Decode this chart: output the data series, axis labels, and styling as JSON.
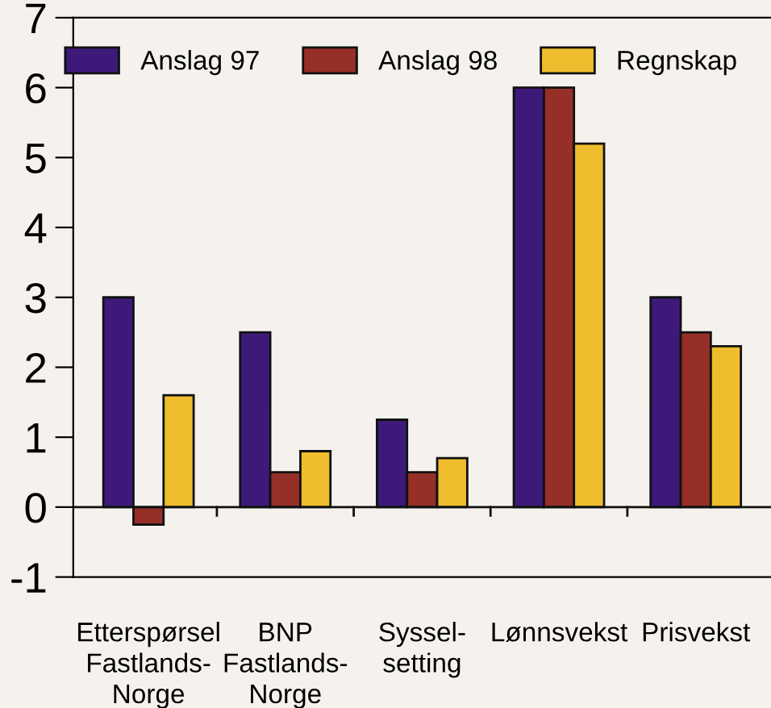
{
  "chart_data": {
    "type": "bar",
    "categories": [
      "Etterspørsel\nFastlands-\nNorge",
      "BNP\nFastlands-\nNorge",
      "Syssel-\nsetting",
      "Lønnsvekst",
      "Prisvekst"
    ],
    "series": [
      {
        "name": "Anslag 97",
        "color": "#3d1a7a",
        "values": [
          3.0,
          2.5,
          1.25,
          6.0,
          3.0
        ]
      },
      {
        "name": "Anslag 98",
        "color": "#952f28",
        "values": [
          -0.25,
          0.5,
          0.5,
          6.0,
          2.5
        ]
      },
      {
        "name": "Regnskap",
        "color": "#efbd2e",
        "values": [
          1.6,
          0.8,
          0.7,
          5.2,
          2.3
        ]
      }
    ],
    "ylim": [
      -1,
      7
    ],
    "yticks": [
      -1,
      0,
      1,
      2,
      3,
      4,
      5,
      6,
      7
    ],
    "legend": "top"
  }
}
